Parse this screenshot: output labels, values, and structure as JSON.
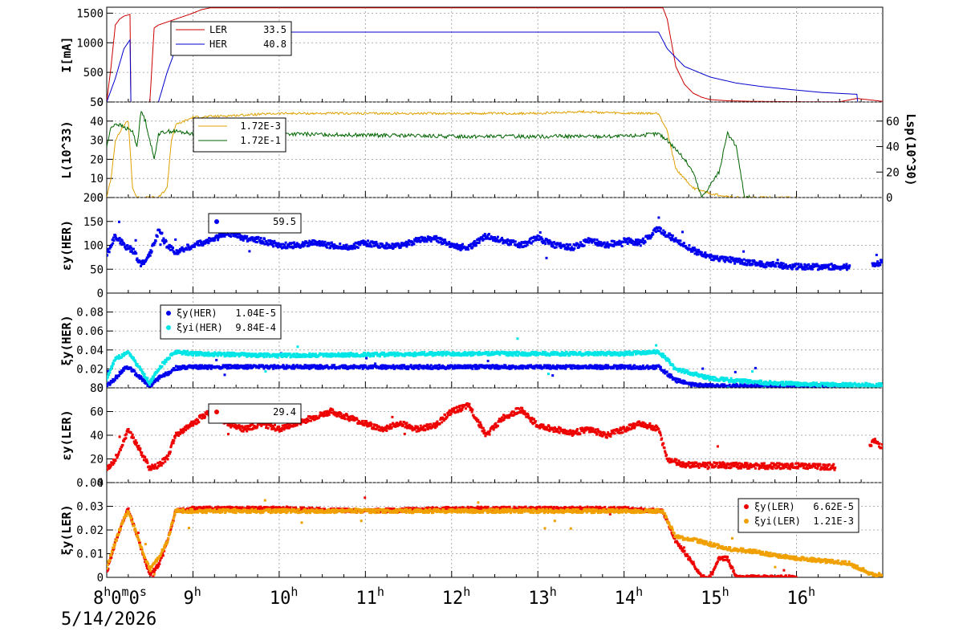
{
  "date_label": "5/14/2026",
  "x_axis": {
    "range_hours": [
      8.0,
      17.0
    ],
    "ticks": [
      {
        "hour": 8,
        "label": "8",
        "sup": "h",
        "extra": "0",
        "extra_sup": "m",
        "extra2": "0",
        "extra2_sup": "s"
      },
      {
        "hour": 9,
        "label": "9",
        "sup": "h"
      },
      {
        "hour": 10,
        "label": "10",
        "sup": "h"
      },
      {
        "hour": 11,
        "label": "11",
        "sup": "h"
      },
      {
        "hour": 12,
        "label": "12",
        "sup": "h"
      },
      {
        "hour": 13,
        "label": "13",
        "sup": "h"
      },
      {
        "hour": 14,
        "label": "14",
        "sup": "h"
      },
      {
        "hour": 15,
        "label": "15",
        "sup": "h"
      },
      {
        "hour": 16,
        "label": "16",
        "sup": "h"
      }
    ]
  },
  "chart_data": [
    {
      "type": "line",
      "panel": "current",
      "ylabel": "I[mA]",
      "ylim": [
        0,
        1600
      ],
      "yticks": [
        0,
        500,
        1000,
        1500
      ],
      "grid": true,
      "legend": {
        "placement": "top-left",
        "entries": [
          {
            "name": "LER",
            "value": "33.5",
            "color": "#cc0000"
          },
          {
            "name": "HER",
            "value": "40.8",
            "color": "#0000cc"
          }
        ]
      },
      "series": [
        {
          "name": "LER",
          "color": "#cc0000",
          "x": [
            8.0,
            8.05,
            8.1,
            8.15,
            8.2,
            8.27,
            8.28,
            8.3,
            8.4,
            8.45,
            8.5,
            8.55,
            8.6,
            8.7,
            8.8,
            8.9,
            9.0,
            9.1,
            9.2,
            10,
            11,
            12,
            13,
            14,
            14.45,
            14.5,
            14.6,
            14.7,
            14.8,
            14.9,
            15.0,
            15.2,
            15.5,
            16.0,
            16.5,
            16.7,
            17.0
          ],
          "y": [
            0,
            600,
            1300,
            1400,
            1450,
            1480,
            0,
            0,
            0,
            0,
            0,
            1250,
            1300,
            1350,
            1400,
            1450,
            1500,
            1560,
            1590,
            1590,
            1590,
            1590,
            1590,
            1590,
            1590,
            1400,
            600,
            300,
            150,
            80,
            40,
            20,
            10,
            5,
            3,
            60,
            10
          ]
        },
        {
          "name": "HER",
          "color": "#0000cc",
          "x": [
            8.0,
            8.1,
            8.2,
            8.27,
            8.28,
            8.4,
            8.5,
            8.6,
            8.7,
            8.8,
            8.9,
            9.0,
            9.1,
            10,
            11,
            12,
            13,
            14,
            14.4,
            14.5,
            14.7,
            15.0,
            15.3,
            15.6,
            16.0,
            16.3,
            16.7,
            16.71,
            17.0
          ],
          "y": [
            0,
            400,
            900,
            1050,
            0,
            0,
            0,
            0,
            500,
            900,
            1050,
            1150,
            1180,
            1180,
            1180,
            1180,
            1180,
            1180,
            1180,
            900,
            600,
            420,
            320,
            260,
            200,
            160,
            130,
            0,
            0
          ]
        }
      ]
    },
    {
      "type": "line",
      "panel": "luminosity",
      "ylabel": "L(10^33)",
      "ylabel_right": "Lsp(10^30)",
      "ylim": [
        0,
        50
      ],
      "yticks": [
        0,
        10,
        20,
        30,
        40,
        50
      ],
      "ylim_right": [
        0,
        75
      ],
      "yticks_right": [
        0,
        20,
        40,
        60
      ],
      "grid": true,
      "legend": {
        "placement": "top-left",
        "entries": [
          {
            "name": "",
            "value": "1.72E-3",
            "color": "#e0a000"
          },
          {
            "name": "",
            "value": "1.72E-1",
            "color": "#006400"
          }
        ]
      },
      "series": [
        {
          "name": "L",
          "color": "#e0a000",
          "x": [
            8.0,
            8.05,
            8.1,
            8.2,
            8.25,
            8.3,
            8.35,
            8.4,
            8.5,
            8.6,
            8.7,
            8.75,
            8.8,
            8.9,
            9.0,
            9.5,
            10.0,
            11,
            12,
            13,
            13.5,
            14,
            14.4,
            14.5,
            14.6,
            14.8,
            15.0,
            15.3,
            15.6,
            16.0
          ],
          "y": [
            0,
            10,
            30,
            38,
            40,
            5,
            0,
            0,
            0,
            0,
            5,
            30,
            38,
            40,
            42,
            43,
            44,
            44,
            44,
            44,
            45,
            44,
            44,
            35,
            15,
            5,
            2,
            0,
            0,
            0
          ]
        },
        {
          "name": "Lsp",
          "color": "#006400",
          "x": [
            8.0,
            8.05,
            8.1,
            8.15,
            8.2,
            8.3,
            8.35,
            8.4,
            8.45,
            8.5,
            8.55,
            8.6,
            8.7,
            8.8,
            9.0,
            9.5,
            10,
            11,
            12,
            13,
            14,
            14.4,
            14.5,
            14.6,
            14.7,
            14.8,
            14.9,
            15.0,
            15.1,
            15.2,
            15.3,
            15.4,
            15.5
          ],
          "y": [
            40,
            55,
            58,
            57,
            55,
            52,
            40,
            68,
            60,
            45,
            30,
            50,
            52,
            52,
            50,
            50,
            50,
            49,
            48,
            48,
            48,
            50,
            45,
            38,
            30,
            20,
            0,
            10,
            20,
            50,
            40,
            0,
            0
          ]
        }
      ]
    },
    {
      "type": "scatter",
      "panel": "ey_her",
      "ylabel": "εy(HER)",
      "ylim": [
        0,
        200
      ],
      "yticks": [
        0,
        50,
        100,
        150,
        200
      ],
      "grid": true,
      "legend": {
        "placement": "top-left",
        "entries": [
          {
            "name": "",
            "value": "59.5",
            "color": "#0000ee"
          }
        ]
      },
      "series": [
        {
          "name": "ey_HER",
          "color": "#0000ee",
          "x": [
            8.0,
            8.1,
            8.2,
            8.3,
            8.4,
            8.5,
            8.6,
            8.7,
            8.8,
            9.0,
            9.2,
            9.4,
            9.6,
            9.8,
            10.0,
            10.2,
            10.4,
            10.6,
            10.8,
            11.0,
            11.2,
            11.4,
            11.6,
            11.8,
            12.0,
            12.2,
            12.4,
            12.6,
            12.8,
            13.0,
            13.2,
            13.4,
            13.6,
            13.8,
            14.0,
            14.2,
            14.4,
            14.6,
            14.8,
            15.0,
            15.2,
            15.4,
            15.6,
            15.8,
            16.0,
            16.2,
            16.4,
            16.6,
            16.9,
            17.0
          ],
          "y": [
            80,
            120,
            100,
            90,
            60,
            80,
            130,
            100,
            85,
            100,
            110,
            125,
            115,
            110,
            100,
            100,
            105,
            100,
            95,
            105,
            100,
            98,
            110,
            115,
            100,
            95,
            120,
            110,
            100,
            115,
            100,
            95,
            110,
            100,
            110,
            105,
            135,
            110,
            90,
            75,
            70,
            65,
            60,
            58,
            55,
            55,
            55,
            55,
            60,
            65
          ]
        }
      ]
    },
    {
      "type": "scatter",
      "panel": "xi_her",
      "ylabel": "ξy(HER)",
      "ylim": [
        0,
        0.1
      ],
      "yticks": [
        0,
        0.02,
        0.04,
        0.06,
        0.08
      ],
      "grid": true,
      "legend": {
        "placement": "top-left",
        "entries": [
          {
            "name": "ξy(HER)",
            "value": "1.04E-5",
            "color": "#0000ee"
          },
          {
            "name": "ξyi(HER)",
            "value": "9.84E-4",
            "color": "#00e5e5"
          }
        ]
      },
      "series": [
        {
          "name": "ξy(HER)",
          "color": "#0000ee",
          "x": [
            8.0,
            8.1,
            8.2,
            8.25,
            8.5,
            8.6,
            8.7,
            8.8,
            9.0,
            10,
            11,
            12,
            13,
            14,
            14.4,
            14.5,
            14.6,
            14.8,
            15.0,
            15.5,
            16.0,
            16.6
          ],
          "y": [
            0.002,
            0.01,
            0.02,
            0.022,
            0.002,
            0.01,
            0.015,
            0.021,
            0.022,
            0.022,
            0.022,
            0.022,
            0.022,
            0.022,
            0.022,
            0.015,
            0.008,
            0.003,
            0.002,
            0.002,
            0.002,
            0.002
          ]
        },
        {
          "name": "ξyi(HER)",
          "color": "#00e5e5",
          "x": [
            8.0,
            8.1,
            8.2,
            8.25,
            8.5,
            8.6,
            8.7,
            8.8,
            9.0,
            9.5,
            10,
            11,
            12,
            13,
            14,
            14.4,
            14.5,
            14.6,
            14.8,
            15.0,
            15.5,
            16.0,
            16.6,
            16.9,
            17.0
          ],
          "y": [
            0.01,
            0.03,
            0.035,
            0.038,
            0.005,
            0.02,
            0.03,
            0.038,
            0.036,
            0.035,
            0.034,
            0.035,
            0.036,
            0.036,
            0.036,
            0.038,
            0.03,
            0.02,
            0.015,
            0.01,
            0.006,
            0.004,
            0.003,
            0.003,
            0.003
          ]
        }
      ]
    },
    {
      "type": "scatter",
      "panel": "ey_ler",
      "ylabel": "εy(LER)",
      "ylim": [
        0,
        80
      ],
      "yticks": [
        0,
        20,
        40,
        60,
        80
      ],
      "grid": true,
      "legend": {
        "placement": "top-left",
        "entries": [
          {
            "name": "",
            "value": "29.4",
            "color": "#ee0000"
          }
        ]
      },
      "series": [
        {
          "name": "ey_LER",
          "color": "#ee0000",
          "x": [
            8.0,
            8.1,
            8.2,
            8.25,
            8.5,
            8.6,
            8.7,
            8.8,
            9.0,
            9.2,
            9.4,
            9.6,
            9.8,
            10.0,
            10.2,
            10.4,
            10.6,
            10.8,
            11.0,
            11.2,
            11.4,
            11.6,
            11.8,
            12.0,
            12.2,
            12.4,
            12.6,
            12.8,
            13.0,
            13.2,
            13.4,
            13.6,
            13.8,
            14.0,
            14.2,
            14.4,
            14.5,
            14.7,
            15.0,
            15.5,
            16.0,
            16.5,
            16.9,
            17.0
          ],
          "y": [
            10,
            20,
            35,
            45,
            12,
            15,
            20,
            40,
            50,
            60,
            50,
            45,
            50,
            45,
            50,
            55,
            60,
            55,
            50,
            45,
            50,
            45,
            48,
            60,
            65,
            40,
            55,
            62,
            48,
            45,
            42,
            45,
            40,
            45,
            50,
            45,
            20,
            15,
            15,
            14,
            14,
            13,
            35,
            30
          ]
        }
      ]
    },
    {
      "type": "scatter",
      "panel": "xi_ler",
      "ylabel": "ξy(LER)",
      "ylim": [
        0,
        0.04
      ],
      "yticks": [
        0,
        0.01,
        0.02,
        0.03,
        0.04
      ],
      "grid": true,
      "legend": {
        "placement": "top-right",
        "entries": [
          {
            "name": "ξy(LER)",
            "value": "6.62E-5",
            "color": "#ee0000"
          },
          {
            "name": "ξyi(LER)",
            "value": "1.21E-3",
            "color": "#f0a000"
          }
        ]
      },
      "series": [
        {
          "name": "ξy(LER)",
          "color": "#ee0000",
          "x": [
            8.0,
            8.1,
            8.2,
            8.25,
            8.5,
            8.6,
            8.7,
            8.8,
            9.0,
            10,
            11,
            12,
            13,
            14,
            14.45,
            14.6,
            14.8,
            14.9,
            15.0,
            15.1,
            15.2,
            15.3,
            15.5,
            16.0
          ],
          "y": [
            0.002,
            0.015,
            0.025,
            0.029,
            0.001,
            0.005,
            0.015,
            0.028,
            0.029,
            0.029,
            0.028,
            0.029,
            0.029,
            0.029,
            0.028,
            0.015,
            0.006,
            0.0,
            0.0,
            0.008,
            0.008,
            0.0,
            0.0,
            0.0
          ]
        },
        {
          "name": "ξyi(LER)",
          "color": "#f0a000",
          "x": [
            8.0,
            8.1,
            8.2,
            8.25,
            8.5,
            8.6,
            8.7,
            8.8,
            9.0,
            10,
            11,
            12,
            13,
            14,
            14.45,
            14.6,
            14.8,
            15.0,
            15.2,
            15.5,
            15.8,
            16.0,
            16.3,
            16.6,
            16.9,
            17.0
          ],
          "y": [
            0.004,
            0.015,
            0.025,
            0.028,
            0.003,
            0.008,
            0.015,
            0.028,
            0.028,
            0.028,
            0.028,
            0.028,
            0.028,
            0.028,
            0.028,
            0.017,
            0.016,
            0.014,
            0.012,
            0.011,
            0.009,
            0.008,
            0.007,
            0.006,
            0.001,
            0.001
          ]
        }
      ]
    }
  ]
}
